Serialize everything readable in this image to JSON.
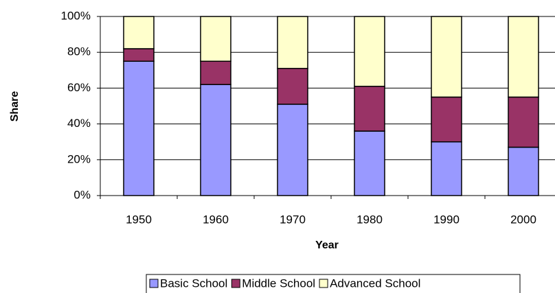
{
  "chart_data": {
    "type": "stacked_bar",
    "x_label": "Year",
    "y_label": "Share",
    "categories": [
      "1950",
      "1960",
      "1970",
      "1980",
      "1990",
      "2000"
    ],
    "series": [
      {
        "name": "Basic School",
        "color": "#9999ff",
        "values": [
          75,
          62,
          51,
          36,
          30,
          27
        ]
      },
      {
        "name": "Middle School",
        "color": "#993366",
        "values": [
          7,
          13,
          20,
          25,
          25,
          28
        ]
      },
      {
        "name": "Advanced School",
        "color": "#ffffcc",
        "values": [
          18,
          25,
          29,
          39,
          45,
          45
        ]
      }
    ],
    "ylim": [
      0,
      100
    ],
    "yticks": [
      {
        "value": 0,
        "label": "0%"
      },
      {
        "value": 20,
        "label": "20%"
      },
      {
        "value": 40,
        "label": "40%"
      },
      {
        "value": 60,
        "label": "60%"
      },
      {
        "value": 80,
        "label": "80%"
      },
      {
        "value": 100,
        "label": "100%"
      }
    ],
    "grid": true
  }
}
